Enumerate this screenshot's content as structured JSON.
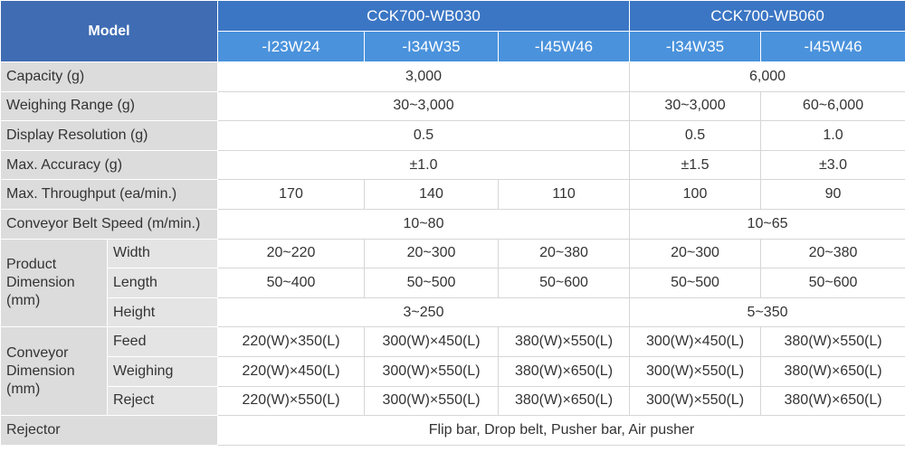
{
  "header": {
    "model": "Model",
    "groups": [
      "CCK700-WB030",
      "CCK700-WB060"
    ],
    "variants": [
      "-I23W24",
      "-I34W35",
      "-I45W46",
      "-I34W35",
      "-I45W46"
    ]
  },
  "rows": [
    {
      "label": "Capacity (g)",
      "cells": [
        "3,000",
        "6,000"
      ]
    },
    {
      "label": "Weighing Range (g)",
      "cells": [
        "30~3,000",
        "30~3,000",
        "60~6,000"
      ]
    },
    {
      "label": "Display Resolution (g)",
      "cells": [
        "0.5",
        "0.5",
        "1.0"
      ]
    },
    {
      "label": "Max. Accuracy (g)",
      "cells": [
        "±1.0",
        "±1.5",
        "±3.0"
      ]
    },
    {
      "label": "Max. Throughput (ea/min.)",
      "cells": [
        "170",
        "140",
        "110",
        "100",
        "90"
      ]
    },
    {
      "label": "Conveyor Belt Speed (m/min.)",
      "cells": [
        "10~80",
        "10~65"
      ]
    }
  ],
  "product_dimension": {
    "label": "Product Dimension (mm)",
    "rows": [
      {
        "label": "Width",
        "cells": [
          "20~220",
          "20~300",
          "20~380",
          "20~300",
          "20~380"
        ]
      },
      {
        "label": "Length",
        "cells": [
          "50~400",
          "50~500",
          "50~600",
          "50~500",
          "50~600"
        ]
      },
      {
        "label": "Height",
        "cells": [
          "3~250",
          "5~350"
        ]
      }
    ]
  },
  "conveyor_dimension": {
    "label": "Conveyor Dimension (mm)",
    "rows": [
      {
        "label": "Feed",
        "cells": [
          "220(W)×350(L)",
          "300(W)×450(L)",
          "380(W)×550(L)",
          "300(W)×450(L)",
          "380(W)×550(L)"
        ]
      },
      {
        "label": "Weighing",
        "cells": [
          "220(W)×450(L)",
          "300(W)×550(L)",
          "380(W)×650(L)",
          "300(W)×550(L)",
          "380(W)×650(L)"
        ]
      },
      {
        "label": "Reject",
        "cells": [
          "220(W)×550(L)",
          "300(W)×550(L)",
          "380(W)×650(L)",
          "300(W)×550(L)",
          "380(W)×650(L)"
        ]
      }
    ]
  },
  "rejector": {
    "label": "Rejector",
    "value": "Flip bar, Drop belt, Pusher bar, Air pusher"
  }
}
